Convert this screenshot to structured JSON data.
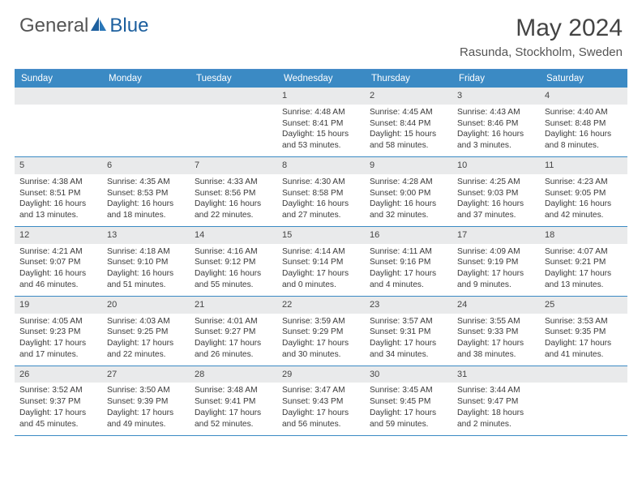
{
  "brand": {
    "name_part1": "General",
    "name_part2": "Blue"
  },
  "title": {
    "month": "May 2024",
    "location": "Rasunda, Stockholm, Sweden"
  },
  "colors": {
    "header_bg": "#3b8ac4",
    "header_text": "#ffffff",
    "daynum_bg": "#e9eaeb",
    "border": "#3b8ac4",
    "text": "#3a3a3a",
    "logo_gray": "#666666",
    "logo_blue": "#1c5f9e"
  },
  "day_names": [
    "Sunday",
    "Monday",
    "Tuesday",
    "Wednesday",
    "Thursday",
    "Friday",
    "Saturday"
  ],
  "weeks": [
    [
      null,
      null,
      null,
      {
        "n": "1",
        "sr": "4:48 AM",
        "ss": "8:41 PM",
        "dl": "15 hours and 53 minutes."
      },
      {
        "n": "2",
        "sr": "4:45 AM",
        "ss": "8:44 PM",
        "dl": "15 hours and 58 minutes."
      },
      {
        "n": "3",
        "sr": "4:43 AM",
        "ss": "8:46 PM",
        "dl": "16 hours and 3 minutes."
      },
      {
        "n": "4",
        "sr": "4:40 AM",
        "ss": "8:48 PM",
        "dl": "16 hours and 8 minutes."
      }
    ],
    [
      {
        "n": "5",
        "sr": "4:38 AM",
        "ss": "8:51 PM",
        "dl": "16 hours and 13 minutes."
      },
      {
        "n": "6",
        "sr": "4:35 AM",
        "ss": "8:53 PM",
        "dl": "16 hours and 18 minutes."
      },
      {
        "n": "7",
        "sr": "4:33 AM",
        "ss": "8:56 PM",
        "dl": "16 hours and 22 minutes."
      },
      {
        "n": "8",
        "sr": "4:30 AM",
        "ss": "8:58 PM",
        "dl": "16 hours and 27 minutes."
      },
      {
        "n": "9",
        "sr": "4:28 AM",
        "ss": "9:00 PM",
        "dl": "16 hours and 32 minutes."
      },
      {
        "n": "10",
        "sr": "4:25 AM",
        "ss": "9:03 PM",
        "dl": "16 hours and 37 minutes."
      },
      {
        "n": "11",
        "sr": "4:23 AM",
        "ss": "9:05 PM",
        "dl": "16 hours and 42 minutes."
      }
    ],
    [
      {
        "n": "12",
        "sr": "4:21 AM",
        "ss": "9:07 PM",
        "dl": "16 hours and 46 minutes."
      },
      {
        "n": "13",
        "sr": "4:18 AM",
        "ss": "9:10 PM",
        "dl": "16 hours and 51 minutes."
      },
      {
        "n": "14",
        "sr": "4:16 AM",
        "ss": "9:12 PM",
        "dl": "16 hours and 55 minutes."
      },
      {
        "n": "15",
        "sr": "4:14 AM",
        "ss": "9:14 PM",
        "dl": "17 hours and 0 minutes."
      },
      {
        "n": "16",
        "sr": "4:11 AM",
        "ss": "9:16 PM",
        "dl": "17 hours and 4 minutes."
      },
      {
        "n": "17",
        "sr": "4:09 AM",
        "ss": "9:19 PM",
        "dl": "17 hours and 9 minutes."
      },
      {
        "n": "18",
        "sr": "4:07 AM",
        "ss": "9:21 PM",
        "dl": "17 hours and 13 minutes."
      }
    ],
    [
      {
        "n": "19",
        "sr": "4:05 AM",
        "ss": "9:23 PM",
        "dl": "17 hours and 17 minutes."
      },
      {
        "n": "20",
        "sr": "4:03 AM",
        "ss": "9:25 PM",
        "dl": "17 hours and 22 minutes."
      },
      {
        "n": "21",
        "sr": "4:01 AM",
        "ss": "9:27 PM",
        "dl": "17 hours and 26 minutes."
      },
      {
        "n": "22",
        "sr": "3:59 AM",
        "ss": "9:29 PM",
        "dl": "17 hours and 30 minutes."
      },
      {
        "n": "23",
        "sr": "3:57 AM",
        "ss": "9:31 PM",
        "dl": "17 hours and 34 minutes."
      },
      {
        "n": "24",
        "sr": "3:55 AM",
        "ss": "9:33 PM",
        "dl": "17 hours and 38 minutes."
      },
      {
        "n": "25",
        "sr": "3:53 AM",
        "ss": "9:35 PM",
        "dl": "17 hours and 41 minutes."
      }
    ],
    [
      {
        "n": "26",
        "sr": "3:52 AM",
        "ss": "9:37 PM",
        "dl": "17 hours and 45 minutes."
      },
      {
        "n": "27",
        "sr": "3:50 AM",
        "ss": "9:39 PM",
        "dl": "17 hours and 49 minutes."
      },
      {
        "n": "28",
        "sr": "3:48 AM",
        "ss": "9:41 PM",
        "dl": "17 hours and 52 minutes."
      },
      {
        "n": "29",
        "sr": "3:47 AM",
        "ss": "9:43 PM",
        "dl": "17 hours and 56 minutes."
      },
      {
        "n": "30",
        "sr": "3:45 AM",
        "ss": "9:45 PM",
        "dl": "17 hours and 59 minutes."
      },
      {
        "n": "31",
        "sr": "3:44 AM",
        "ss": "9:47 PM",
        "dl": "18 hours and 2 minutes."
      },
      null
    ]
  ],
  "labels": {
    "sunrise": "Sunrise:",
    "sunset": "Sunset:",
    "daylight": "Daylight:"
  }
}
